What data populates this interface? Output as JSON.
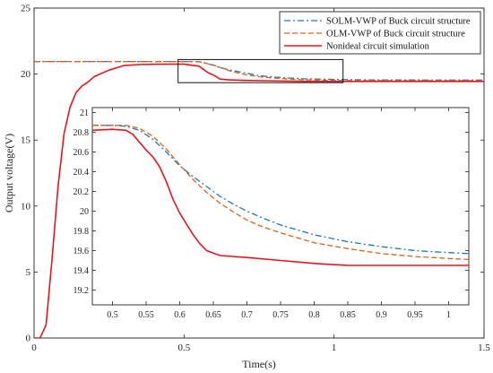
{
  "colors": {
    "solm": "#1f77b4",
    "olm": "#e0601b",
    "nonideal": "#e8141c"
  },
  "chart_data": [
    {
      "type": "line",
      "xlabel": "Time(s)",
      "ylabel": "Output voltage(V)",
      "xlim": [
        0,
        1.5
      ],
      "ylim": [
        0,
        25
      ],
      "xticks": [
        0,
        0.5,
        1,
        1.5
      ],
      "xtick_labels": [
        "0",
        "0.5",
        "1",
        "1.5"
      ],
      "yticks": [
        0,
        5,
        10,
        15,
        20,
        25
      ],
      "ytick_labels": [
        "0",
        "5",
        "10",
        "15",
        "20",
        "25"
      ],
      "legend": "top-right",
      "grid": false,
      "series": [
        {
          "name": "SOLM-VWP of Buck circuit structure",
          "style": "dashdot",
          "color": "#1f77b4",
          "x": [
            0,
            0.5,
            0.55,
            0.6,
            0.62,
            0.65,
            0.7,
            0.75,
            0.8,
            0.85,
            0.9,
            1.0,
            1.1,
            1.3,
            1.5
          ],
          "y": [
            20.95,
            20.95,
            20.93,
            20.65,
            20.5,
            20.32,
            20.1,
            19.88,
            19.77,
            19.7,
            19.64,
            19.6,
            19.56,
            19.55,
            19.55
          ]
        },
        {
          "name": "OLM-VWP of Buck circuit structure",
          "style": "dashed",
          "color": "#e0601b",
          "x": [
            0,
            0.5,
            0.55,
            0.6,
            0.62,
            0.65,
            0.7,
            0.75,
            0.8,
            0.85,
            0.9,
            1.0,
            1.1,
            1.3,
            1.5
          ],
          "y": [
            20.95,
            20.95,
            20.94,
            20.68,
            20.5,
            20.25,
            19.98,
            19.8,
            19.7,
            19.62,
            19.57,
            19.52,
            19.5,
            19.5,
            19.5
          ]
        },
        {
          "name": "Nonideal circuit simulation",
          "style": "solid",
          "color": "#e8141c",
          "x": [
            0,
            0.02,
            0.04,
            0.06,
            0.08,
            0.1,
            0.12,
            0.14,
            0.16,
            0.18,
            0.2,
            0.25,
            0.3,
            0.35,
            0.4,
            0.45,
            0.5,
            0.55,
            0.58,
            0.6,
            0.62,
            0.65,
            0.7,
            0.8,
            0.9,
            1.0,
            1.2,
            1.5
          ],
          "y": [
            0,
            0,
            1,
            6,
            11.5,
            15.5,
            17.5,
            18.6,
            19.1,
            19.4,
            19.8,
            20.3,
            20.65,
            20.72,
            20.74,
            20.75,
            20.75,
            20.6,
            20.1,
            19.9,
            19.62,
            19.56,
            19.52,
            19.48,
            19.45,
            19.44,
            19.44,
            19.44
          ]
        }
      ],
      "annotations": [
        {
          "type": "zoom-box",
          "xlim": [
            0.48,
            1.03
          ],
          "ylim": [
            19.35,
            21.1
          ]
        }
      ]
    },
    {
      "type": "line",
      "role": "inset",
      "xlim": [
        0.47,
        1.03
      ],
      "ylim": [
        19.05,
        21.05
      ],
      "xticks": [
        0.5,
        0.55,
        0.6,
        0.65,
        0.7,
        0.75,
        0.8,
        0.85,
        0.9,
        0.95,
        1
      ],
      "xtick_labels": [
        "0.5",
        "0.55",
        "0.6",
        "0.65",
        "0.7",
        "0.75",
        "0.8",
        "0.85",
        "0.9",
        "0.95",
        "1"
      ],
      "yticks": [
        19.2,
        19.4,
        19.6,
        19.8,
        20,
        20.2,
        20.4,
        20.6,
        20.8,
        21
      ],
      "ytick_labels": [
        "19.2",
        "19.4",
        "19.6",
        "19.8",
        "20",
        "20.2",
        "20.4",
        "20.6",
        "20.8",
        "21"
      ],
      "grid": false,
      "series": [
        {
          "style": "dashdot",
          "color": "#1f77b4",
          "x": [
            0.47,
            0.5,
            0.52,
            0.54,
            0.56,
            0.58,
            0.6,
            0.62,
            0.64,
            0.66,
            0.68,
            0.7,
            0.72,
            0.75,
            0.8,
            0.85,
            0.9,
            0.95,
            1.0,
            1.03
          ],
          "y": [
            20.87,
            20.87,
            20.86,
            20.82,
            20.73,
            20.6,
            20.46,
            20.35,
            20.25,
            20.15,
            20.07,
            20.0,
            19.94,
            19.86,
            19.76,
            19.69,
            19.64,
            19.6,
            19.58,
            19.57
          ]
        },
        {
          "style": "dashed",
          "color": "#e0601b",
          "x": [
            0.47,
            0.5,
            0.52,
            0.54,
            0.56,
            0.58,
            0.6,
            0.62,
            0.64,
            0.66,
            0.68,
            0.7,
            0.72,
            0.75,
            0.8,
            0.85,
            0.9,
            0.95,
            1.0,
            1.03
          ],
          "y": [
            20.87,
            20.87,
            20.87,
            20.84,
            20.76,
            20.63,
            20.47,
            20.32,
            20.19,
            20.08,
            19.99,
            19.91,
            19.85,
            19.78,
            19.68,
            19.62,
            19.57,
            19.54,
            19.52,
            19.51
          ]
        },
        {
          "style": "solid",
          "color": "#e8141c",
          "x": [
            0.47,
            0.5,
            0.52,
            0.53,
            0.54,
            0.55,
            0.56,
            0.57,
            0.58,
            0.59,
            0.6,
            0.61,
            0.62,
            0.63,
            0.64,
            0.66,
            0.7,
            0.75,
            0.8,
            0.85,
            0.9,
            1.0,
            1.03
          ],
          "y": [
            20.82,
            20.83,
            20.82,
            20.78,
            20.7,
            20.62,
            20.55,
            20.45,
            20.3,
            20.12,
            19.98,
            19.87,
            19.76,
            19.67,
            19.6,
            19.55,
            19.53,
            19.5,
            19.47,
            19.45,
            19.45,
            19.45,
            19.45
          ]
        }
      ]
    }
  ]
}
